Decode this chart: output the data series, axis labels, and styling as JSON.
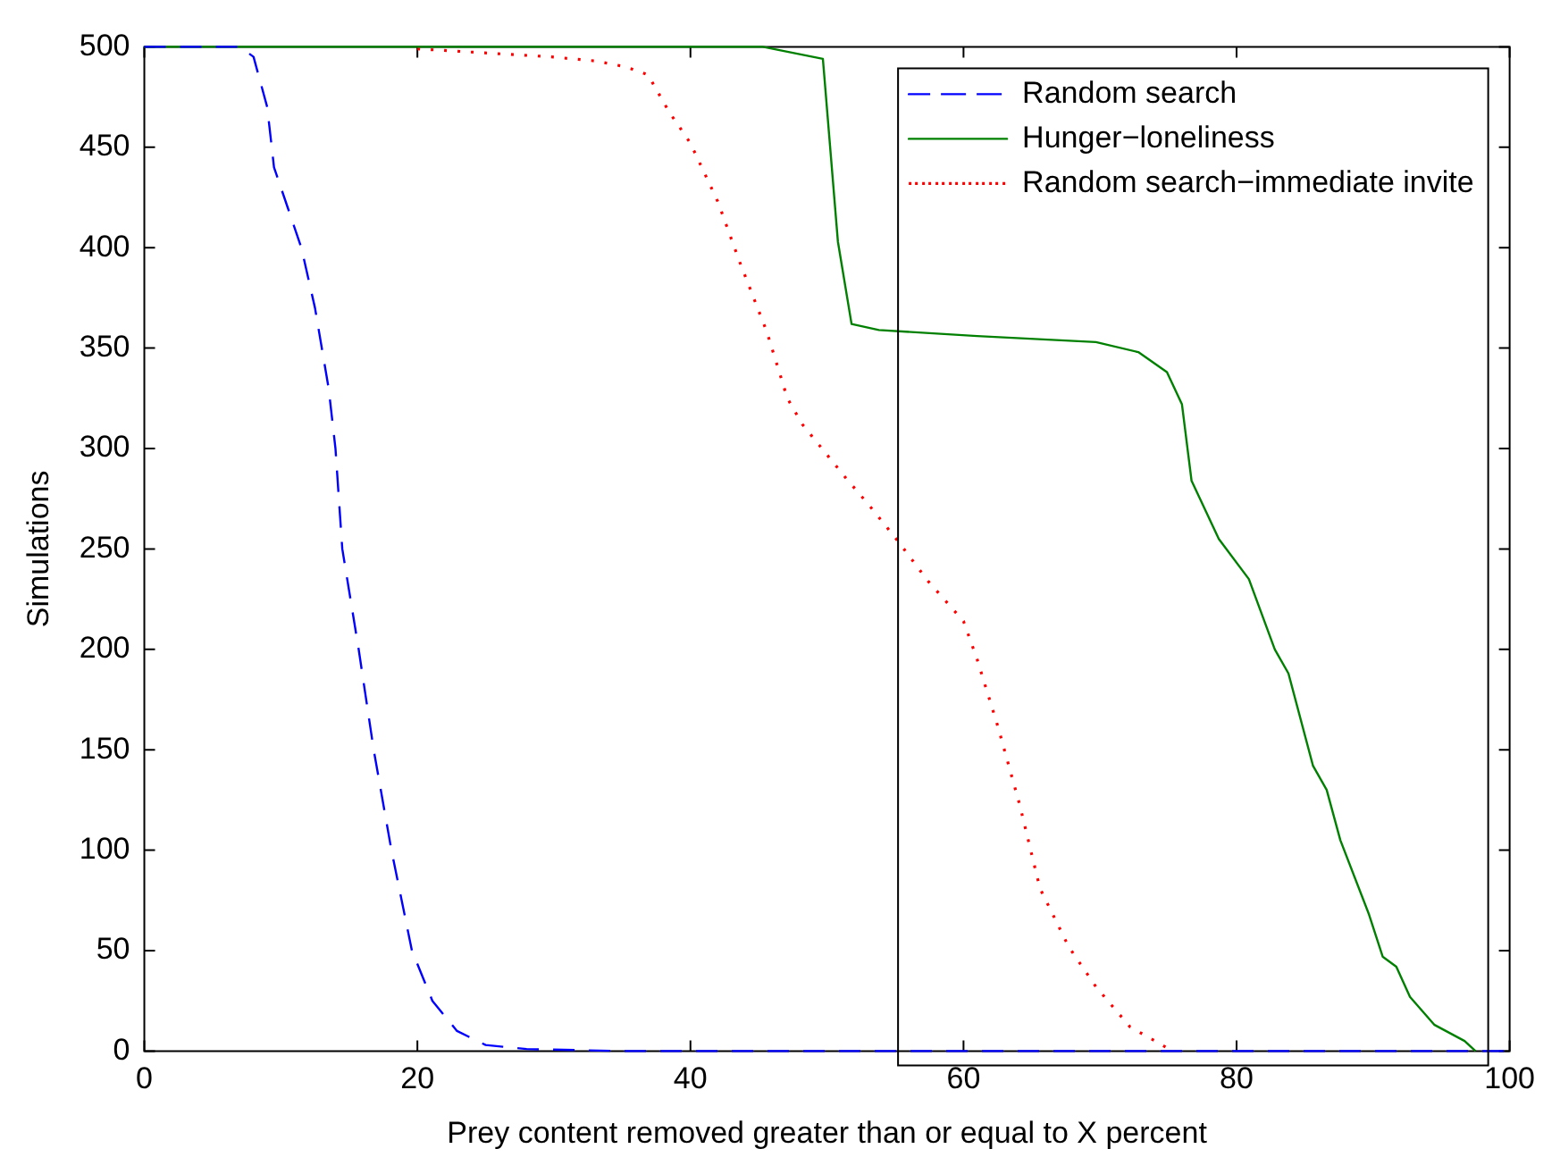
{
  "chart_data": {
    "type": "line",
    "xlabel": "Prey content removed greater than or equal to X percent",
    "ylabel": "Simulations",
    "xlim": [
      0,
      100
    ],
    "xticks": [
      0,
      20,
      40,
      60,
      80,
      100
    ],
    "ylim": [
      0,
      500
    ],
    "yticks": [
      0,
      50,
      100,
      150,
      200,
      250,
      300,
      350,
      400,
      450,
      500
    ],
    "grid": false,
    "legend": "top right",
    "marker": "none",
    "series": [
      {
        "name": "Random search",
        "color": "#0000ff",
        "line_style": "dashed",
        "x": [
          0,
          7,
          8,
          9,
          9.5,
          10.5,
          11.5,
          12.5,
          13.5,
          14,
          14.5,
          15.7,
          16.8,
          18.1,
          19.6,
          20.5,
          21.1,
          22.9,
          25,
          28,
          35,
          100
        ],
        "values": [
          500,
          500,
          495,
          470,
          440,
          420,
          400,
          370,
          330,
          300,
          250,
          200,
          150,
          100,
          50,
          35,
          25,
          10,
          3,
          1,
          0,
          0
        ]
      },
      {
        "name": "Hunger−loneliness",
        "color": "#008000",
        "line_style": "solid",
        "x": [
          0,
          45.3,
          49.7,
          50.8,
          51.8,
          53.8,
          61,
          69.7,
          72.8,
          74.9,
          76,
          76.7,
          78.7,
          80.9,
          82.8,
          83.8,
          85.6,
          86.6,
          87.6,
          89.7,
          90.7,
          91.7,
          92.7,
          94.5,
          96.7,
          97.5
        ],
        "values": [
          500,
          500,
          494,
          403,
          362,
          359,
          356,
          353,
          348,
          338,
          322,
          284,
          255,
          235,
          200,
          188,
          142,
          130,
          105,
          68,
          47,
          42,
          27,
          13,
          5,
          0
        ]
      },
      {
        "name": "Random search−immediate invite",
        "color": "#ff0000",
        "line_style": "dotted",
        "x": [
          20,
          29.8,
          33,
          35.3,
          36.9,
          38.4,
          40,
          42,
          43.6,
          45.6,
          47.1,
          48.2,
          51.3,
          53.3,
          55.3,
          57.4,
          60,
          61,
          62.5,
          64.1,
          65.6,
          67.7,
          69.7,
          72.2,
          74.3,
          75.3
        ],
        "values": [
          499,
          495,
          493,
          490,
          486,
          468,
          452,
          423,
          393,
          358,
          325,
          312,
          286,
          270,
          253,
          234,
          214,
          195,
          162,
          123,
          81,
          52,
          32,
          12,
          4,
          0
        ]
      }
    ]
  }
}
